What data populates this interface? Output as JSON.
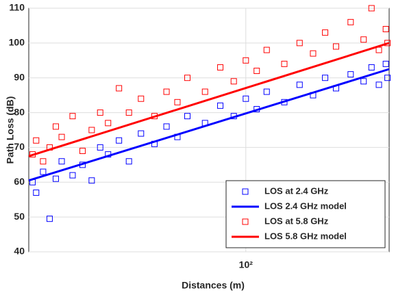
{
  "chart_data": {
    "type": "scatter",
    "xlabel": "Distances (m)",
    "ylabel": "Path Loss (dB)",
    "xscale": "log",
    "xlim": [
      15,
      350
    ],
    "xticks": [
      {
        "value": 100,
        "label": "10²"
      }
    ],
    "ylim": [
      40,
      110
    ],
    "yticks": [
      40,
      50,
      60,
      70,
      80,
      90,
      100,
      110
    ],
    "grid": true,
    "legend": "lower right",
    "series": [
      {
        "name": "LOS at 2.4 GHz",
        "color": "#0000ff",
        "marker": "square",
        "x": [
          15.5,
          16,
          17,
          18,
          19,
          20,
          22,
          24,
          26,
          28,
          30,
          33,
          36,
          40,
          45,
          50,
          55,
          60,
          70,
          80,
          90,
          100,
          110,
          120,
          140,
          160,
          180,
          200,
          220,
          250,
          280,
          300,
          320,
          340,
          345
        ],
        "values": [
          60,
          57,
          63,
          49.5,
          61,
          66,
          62,
          65,
          60.5,
          70,
          68,
          72,
          66,
          74,
          71,
          76,
          73,
          79,
          77,
          82,
          79,
          84,
          81,
          86,
          83,
          88,
          85,
          90,
          87,
          91,
          89,
          93,
          88,
          94,
          90
        ]
      },
      {
        "name": "LOS 2.4 GHz model",
        "color": "#0000ff",
        "marker": "line",
        "x": [
          15,
          350
        ],
        "values": [
          60.5,
          92.5
        ]
      },
      {
        "name": "LOS at 5.8 GHz",
        "color": "#ff0000",
        "marker": "square",
        "x": [
          15.5,
          16,
          17,
          18,
          19,
          20,
          22,
          24,
          26,
          28,
          30,
          33,
          36,
          40,
          45,
          50,
          55,
          60,
          70,
          80,
          90,
          100,
          110,
          120,
          140,
          160,
          180,
          200,
          220,
          250,
          280,
          300,
          320,
          340,
          345
        ],
        "values": [
          68,
          72,
          66,
          70,
          76,
          73,
          79,
          69,
          75,
          80,
          77,
          87,
          80,
          84,
          79,
          86,
          83,
          90,
          86,
          93,
          89,
          95,
          92,
          98,
          94,
          100,
          97,
          103,
          99,
          106,
          101,
          110,
          98,
          104,
          100
        ]
      },
      {
        "name": "LOS 5.8 GHz model",
        "color": "#ff0000",
        "marker": "line",
        "x": [
          15,
          350
        ],
        "values": [
          67.5,
          100
        ]
      }
    ]
  }
}
